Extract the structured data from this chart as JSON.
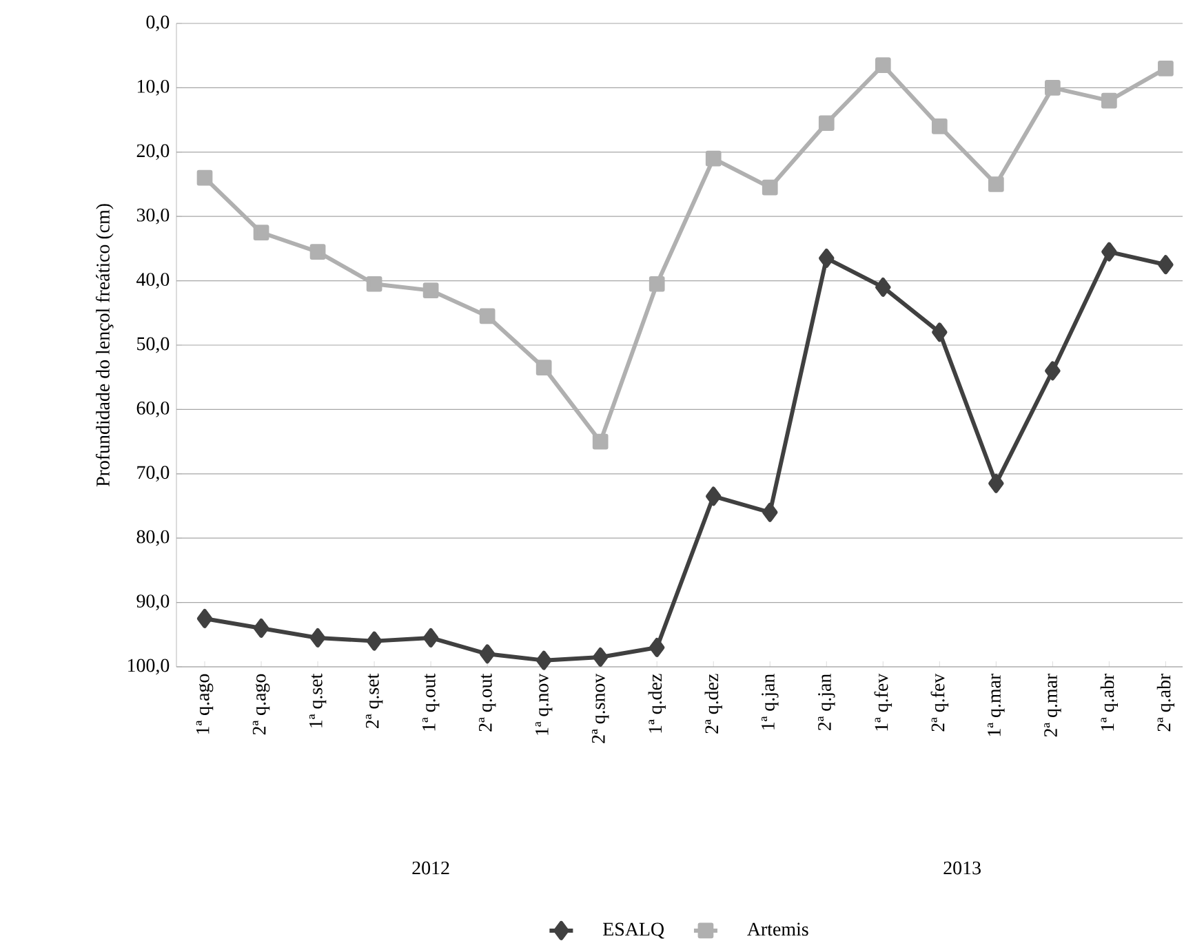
{
  "chart_data": {
    "type": "line",
    "ylabel": "Profundidade do lençol freático (cm)",
    "categories": [
      "1ª q.ago",
      "2ª q.ago",
      "1ª q.set",
      "2ª q.set",
      "1ª q.out",
      "2ª q.out",
      "1ª q.nov",
      "2ª q.snov",
      "1ª q.dez",
      "2ª q.dez",
      "1ª q.jan",
      "2ª q.jan",
      "1ª q.fev",
      "2ª q.fev",
      "1ª q.mar",
      "2ª q.mar",
      "1ª q.abr",
      "2ª q.abr"
    ],
    "series": [
      {
        "name": "ESALQ",
        "color": "#404040",
        "marker": "diamond",
        "values": [
          92.5,
          94,
          95.5,
          96,
          95.5,
          98,
          99,
          98.5,
          97,
          73.5,
          76,
          36.5,
          41,
          48,
          71.5,
          54,
          35.5,
          37.5
        ]
      },
      {
        "name": "Artemis",
        "color": "#b0b0b0",
        "marker": "square",
        "values": [
          24,
          32.5,
          35.5,
          40.5,
          41.5,
          45.5,
          53.5,
          65,
          40.5,
          21,
          25.5,
          15.5,
          6.5,
          16,
          25,
          10,
          12,
          7
        ]
      }
    ],
    "ylim": [
      100,
      0
    ],
    "yticks": [
      {
        "value": 0,
        "label": "0,0"
      },
      {
        "value": 10,
        "label": "10,0"
      },
      {
        "value": 20,
        "label": "20,0"
      },
      {
        "value": 30,
        "label": "30,0"
      },
      {
        "value": 40,
        "label": "40,0"
      },
      {
        "value": 50,
        "label": "50,0"
      },
      {
        "value": 60,
        "label": "60,0"
      },
      {
        "value": 70,
        "label": "70,0"
      },
      {
        "value": 80,
        "label": "80,0"
      },
      {
        "value": 90,
        "label": "90,0"
      },
      {
        "value": 100,
        "label": "100,0"
      }
    ],
    "annotations": [
      "2012",
      "2013"
    ],
    "grid": "y",
    "legend": "bottom"
  }
}
